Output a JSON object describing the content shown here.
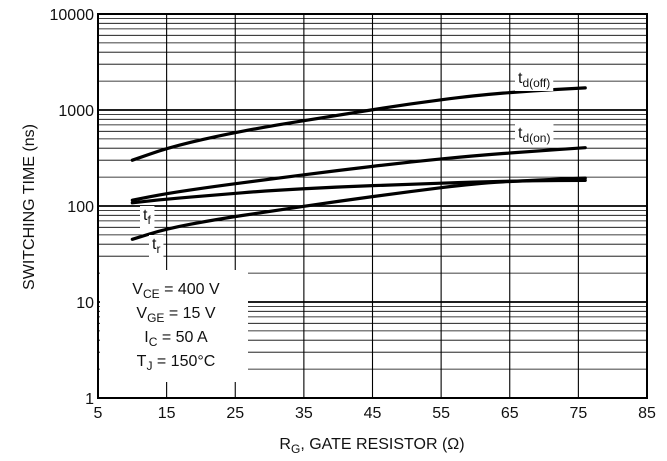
{
  "chart_data": {
    "type": "line",
    "title": "",
    "xlabel": {
      "main": "R",
      "sub": "G",
      "rest": ", GATE RESISTOR (Ω)"
    },
    "ylabel": "SWITCHING TIME (ns)",
    "x_scale": "linear",
    "y_scale": "log",
    "xlim": [
      5,
      85
    ],
    "ylim": [
      1,
      10000
    ],
    "x_ticks": [
      "5",
      "15",
      "25",
      "35",
      "45",
      "55",
      "65",
      "75",
      "85"
    ],
    "y_ticks": [
      "1",
      "10",
      "100",
      "1000",
      "10000"
    ],
    "grid": true,
    "series": [
      {
        "name": {
          "main": "t",
          "sub": "d(off)"
        },
        "x": [
          10,
          15,
          22,
          30,
          40,
          50,
          60,
          68,
          76
        ],
        "y": [
          300,
          400,
          530,
          680,
          880,
          1150,
          1420,
          1580,
          1700
        ]
      },
      {
        "name": {
          "main": "t",
          "sub": "d(on)"
        },
        "x": [
          10,
          15,
          22,
          30,
          40,
          50,
          60,
          68,
          76
        ],
        "y": [
          115,
          135,
          160,
          190,
          235,
          285,
          335,
          370,
          405
        ]
      },
      {
        "name": {
          "main": "t",
          "sub": "f"
        },
        "x": [
          10,
          15,
          22,
          30,
          40,
          50,
          60,
          68,
          76
        ],
        "y": [
          108,
          118,
          130,
          145,
          158,
          168,
          178,
          183,
          185
        ]
      },
      {
        "name": {
          "main": "t",
          "sub": "r"
        },
        "x": [
          10,
          15,
          22,
          30,
          40,
          50,
          60,
          68,
          76
        ],
        "y": [
          45,
          58,
          72,
          88,
          112,
          140,
          172,
          185,
          195
        ]
      }
    ],
    "conditions": [
      {
        "main": "V",
        "sub": "CE",
        "rest": " = 400 V"
      },
      {
        "main": "V",
        "sub": "GE",
        "rest": " = 15 V"
      },
      {
        "main": "I",
        "sub": "C",
        "rest": " = 50 A"
      },
      {
        "main": "T",
        "sub": "J",
        "rest": " = 150°C"
      }
    ]
  }
}
